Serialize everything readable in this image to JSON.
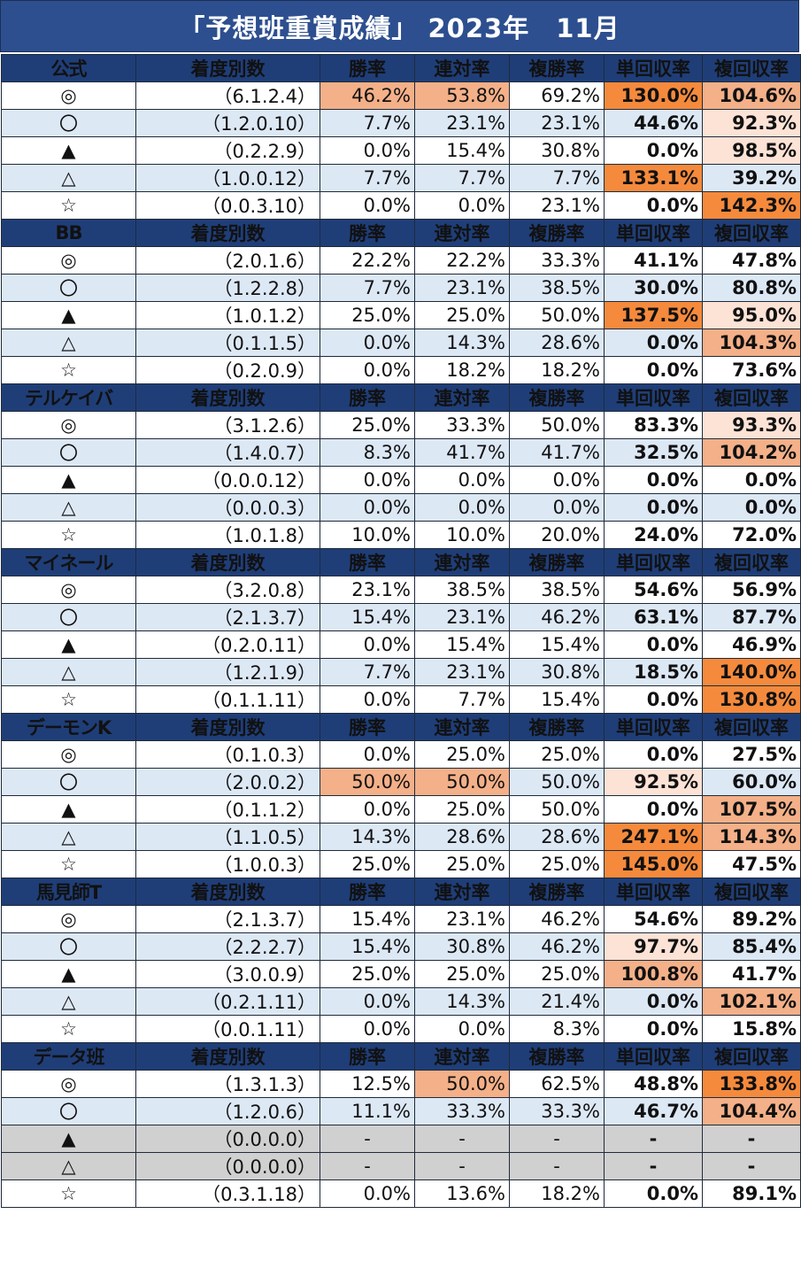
{
  "title": "「予想班重賞成績」 2023年　11月",
  "headers": [
    "着度別数",
    "勝率",
    "連対率",
    "複勝率",
    "単回収率",
    "複回収率"
  ],
  "highlight_colors": {
    "dark": "#f58a3c",
    "medium": "#f4b088",
    "light": "#fde3d6",
    "header": "#1f3e78"
  },
  "sections": [
    {
      "name": "公式",
      "rows": [
        {
          "mark": "◎",
          "counts": "（6.1.2.4）",
          "win": "46.2%",
          "ren": "53.8%",
          "fuku": "69.2%",
          "tan_ret": "130.0%",
          "fuku_ret": "104.6%",
          "hl": {
            "win": "medium",
            "ren": "medium",
            "tan_ret": "dark",
            "fuku_ret": "medium"
          }
        },
        {
          "mark": "〇",
          "counts": "（1.2.0.10）",
          "win": "7.7%",
          "ren": "23.1%",
          "fuku": "23.1%",
          "tan_ret": "44.6%",
          "fuku_ret": "92.3%",
          "hl": {
            "fuku_ret": "light"
          }
        },
        {
          "mark": "▲",
          "counts": "（0.2.2.9）",
          "win": "0.0%",
          "ren": "15.4%",
          "fuku": "30.8%",
          "tan_ret": "0.0%",
          "fuku_ret": "98.5%",
          "hl": {
            "fuku_ret": "light"
          }
        },
        {
          "mark": "△",
          "counts": "（1.0.0.12）",
          "win": "7.7%",
          "ren": "7.7%",
          "fuku": "7.7%",
          "tan_ret": "133.1%",
          "fuku_ret": "39.2%",
          "hl": {
            "tan_ret": "dark"
          }
        },
        {
          "mark": "☆",
          "counts": "（0.0.3.10）",
          "win": "0.0%",
          "ren": "0.0%",
          "fuku": "23.1%",
          "tan_ret": "0.0%",
          "fuku_ret": "142.3%",
          "hl": {
            "fuku_ret": "dark"
          }
        }
      ]
    },
    {
      "name": "BB",
      "rows": [
        {
          "mark": "◎",
          "counts": "（2.0.1.6）",
          "win": "22.2%",
          "ren": "22.2%",
          "fuku": "33.3%",
          "tan_ret": "41.1%",
          "fuku_ret": "47.8%",
          "hl": {}
        },
        {
          "mark": "〇",
          "counts": "（1.2.2.8）",
          "win": "7.7%",
          "ren": "23.1%",
          "fuku": "38.5%",
          "tan_ret": "30.0%",
          "fuku_ret": "80.8%",
          "hl": {}
        },
        {
          "mark": "▲",
          "counts": "（1.0.1.2）",
          "win": "25.0%",
          "ren": "25.0%",
          "fuku": "50.0%",
          "tan_ret": "137.5%",
          "fuku_ret": "95.0%",
          "hl": {
            "tan_ret": "dark",
            "fuku_ret": "light"
          }
        },
        {
          "mark": "△",
          "counts": "（0.1.1.5）",
          "win": "0.0%",
          "ren": "14.3%",
          "fuku": "28.6%",
          "tan_ret": "0.0%",
          "fuku_ret": "104.3%",
          "hl": {
            "fuku_ret": "medium"
          }
        },
        {
          "mark": "☆",
          "counts": "（0.2.0.9）",
          "win": "0.0%",
          "ren": "18.2%",
          "fuku": "18.2%",
          "tan_ret": "0.0%",
          "fuku_ret": "73.6%",
          "hl": {}
        }
      ]
    },
    {
      "name": "テルケイバ",
      "rows": [
        {
          "mark": "◎",
          "counts": "（3.1.2.6）",
          "win": "25.0%",
          "ren": "33.3%",
          "fuku": "50.0%",
          "tan_ret": "83.3%",
          "fuku_ret": "93.3%",
          "hl": {
            "fuku_ret": "light"
          }
        },
        {
          "mark": "〇",
          "counts": "（1.4.0.7）",
          "win": "8.3%",
          "ren": "41.7%",
          "fuku": "41.7%",
          "tan_ret": "32.5%",
          "fuku_ret": "104.2%",
          "hl": {
            "fuku_ret": "medium"
          }
        },
        {
          "mark": "▲",
          "counts": "（0.0.0.12）",
          "win": "0.0%",
          "ren": "0.0%",
          "fuku": "0.0%",
          "tan_ret": "0.0%",
          "fuku_ret": "0.0%",
          "hl": {}
        },
        {
          "mark": "△",
          "counts": "（0.0.0.3）",
          "win": "0.0%",
          "ren": "0.0%",
          "fuku": "0.0%",
          "tan_ret": "0.0%",
          "fuku_ret": "0.0%",
          "hl": {}
        },
        {
          "mark": "☆",
          "counts": "（1.0.1.8）",
          "win": "10.0%",
          "ren": "10.0%",
          "fuku": "20.0%",
          "tan_ret": "24.0%",
          "fuku_ret": "72.0%",
          "hl": {}
        }
      ]
    },
    {
      "name": "マイネール",
      "rows": [
        {
          "mark": "◎",
          "counts": "（3.2.0.8）",
          "win": "23.1%",
          "ren": "38.5%",
          "fuku": "38.5%",
          "tan_ret": "54.6%",
          "fuku_ret": "56.9%",
          "hl": {}
        },
        {
          "mark": "〇",
          "counts": "（2.1.3.7）",
          "win": "15.4%",
          "ren": "23.1%",
          "fuku": "46.2%",
          "tan_ret": "63.1%",
          "fuku_ret": "87.7%",
          "hl": {}
        },
        {
          "mark": "▲",
          "counts": "（0.2.0.11）",
          "win": "0.0%",
          "ren": "15.4%",
          "fuku": "15.4%",
          "tan_ret": "0.0%",
          "fuku_ret": "46.9%",
          "hl": {}
        },
        {
          "mark": "△",
          "counts": "（1.2.1.9）",
          "win": "7.7%",
          "ren": "23.1%",
          "fuku": "30.8%",
          "tan_ret": "18.5%",
          "fuku_ret": "140.0%",
          "hl": {
            "fuku_ret": "dark"
          }
        },
        {
          "mark": "☆",
          "counts": "（0.1.1.11）",
          "win": "0.0%",
          "ren": "7.7%",
          "fuku": "15.4%",
          "tan_ret": "0.0%",
          "fuku_ret": "130.8%",
          "hl": {
            "fuku_ret": "dark"
          }
        }
      ]
    },
    {
      "name": "デーモンK",
      "rows": [
        {
          "mark": "◎",
          "counts": "（0.1.0.3）",
          "win": "0.0%",
          "ren": "25.0%",
          "fuku": "25.0%",
          "tan_ret": "0.0%",
          "fuku_ret": "27.5%",
          "hl": {}
        },
        {
          "mark": "〇",
          "counts": "（2.0.0.2）",
          "win": "50.0%",
          "ren": "50.0%",
          "fuku": "50.0%",
          "tan_ret": "92.5%",
          "fuku_ret": "60.0%",
          "hl": {
            "win": "medium",
            "ren": "medium",
            "tan_ret": "light"
          }
        },
        {
          "mark": "▲",
          "counts": "（0.1.1.2）",
          "win": "0.0%",
          "ren": "25.0%",
          "fuku": "50.0%",
          "tan_ret": "0.0%",
          "fuku_ret": "107.5%",
          "hl": {
            "fuku_ret": "medium"
          }
        },
        {
          "mark": "△",
          "counts": "（1.1.0.5）",
          "win": "14.3%",
          "ren": "28.6%",
          "fuku": "28.6%",
          "tan_ret": "247.1%",
          "fuku_ret": "114.3%",
          "hl": {
            "tan_ret": "dark",
            "fuku_ret": "medium"
          }
        },
        {
          "mark": "☆",
          "counts": "（1.0.0.3）",
          "win": "25.0%",
          "ren": "25.0%",
          "fuku": "25.0%",
          "tan_ret": "145.0%",
          "fuku_ret": "47.5%",
          "hl": {
            "tan_ret": "dark"
          }
        }
      ]
    },
    {
      "name": "馬見師T",
      "rows": [
        {
          "mark": "◎",
          "counts": "（2.1.3.7）",
          "win": "15.4%",
          "ren": "23.1%",
          "fuku": "46.2%",
          "tan_ret": "54.6%",
          "fuku_ret": "89.2%",
          "hl": {}
        },
        {
          "mark": "〇",
          "counts": "（2.2.2.7）",
          "win": "15.4%",
          "ren": "30.8%",
          "fuku": "46.2%",
          "tan_ret": "97.7%",
          "fuku_ret": "85.4%",
          "hl": {
            "tan_ret": "light"
          }
        },
        {
          "mark": "▲",
          "counts": "（3.0.0.9）",
          "win": "25.0%",
          "ren": "25.0%",
          "fuku": "25.0%",
          "tan_ret": "100.8%",
          "fuku_ret": "41.7%",
          "hl": {
            "tan_ret": "medium"
          }
        },
        {
          "mark": "△",
          "counts": "（0.2.1.11）",
          "win": "0.0%",
          "ren": "14.3%",
          "fuku": "21.4%",
          "tan_ret": "0.0%",
          "fuku_ret": "102.1%",
          "hl": {
            "fuku_ret": "medium"
          }
        },
        {
          "mark": "☆",
          "counts": "（0.0.1.11）",
          "win": "0.0%",
          "ren": "0.0%",
          "fuku": "8.3%",
          "tan_ret": "0.0%",
          "fuku_ret": "15.8%",
          "hl": {}
        }
      ]
    },
    {
      "name": "データ班",
      "rows": [
        {
          "mark": "◎",
          "counts": "（1.3.1.3）",
          "win": "12.5%",
          "ren": "50.0%",
          "fuku": "62.5%",
          "tan_ret": "48.8%",
          "fuku_ret": "133.8%",
          "hl": {
            "ren": "medium",
            "fuku_ret": "dark"
          }
        },
        {
          "mark": "〇",
          "counts": "（1.2.0.6）",
          "win": "11.1%",
          "ren": "33.3%",
          "fuku": "33.3%",
          "tan_ret": "46.7%",
          "fuku_ret": "104.4%",
          "hl": {
            "fuku_ret": "medium"
          }
        },
        {
          "mark": "▲",
          "counts": "（0.0.0.0）",
          "win": "-",
          "ren": "-",
          "fuku": "-",
          "tan_ret": "-",
          "fuku_ret": "-",
          "gray": true,
          "hl": {}
        },
        {
          "mark": "△",
          "counts": "（0.0.0.0）",
          "win": "-",
          "ren": "-",
          "fuku": "-",
          "tan_ret": "-",
          "fuku_ret": "-",
          "gray": true,
          "hl": {}
        },
        {
          "mark": "☆",
          "counts": "（0.3.1.18）",
          "win": "0.0%",
          "ren": "13.6%",
          "fuku": "18.2%",
          "tan_ret": "0.0%",
          "fuku_ret": "89.1%",
          "hl": {}
        }
      ]
    }
  ]
}
